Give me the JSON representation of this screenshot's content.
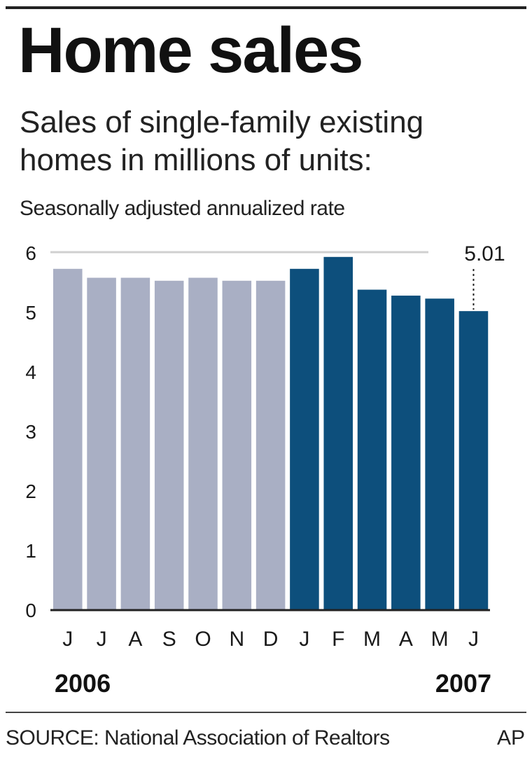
{
  "title": "Home sales",
  "subtitle": "Sales of single-family existing homes in millions of units:",
  "note": "Seasonally adjusted annualized rate",
  "source": "SOURCE: National Association of Realtors",
  "credit": "AP",
  "colors": {
    "y2006": "#a9afc4",
    "y2007": "#0d4f7c",
    "text": "#1a1a1a",
    "grid": "#d0d0d0"
  },
  "chart_data": {
    "type": "bar",
    "categories": [
      "J",
      "J",
      "A",
      "S",
      "O",
      "N",
      "D",
      "J",
      "F",
      "M",
      "A",
      "M",
      "J"
    ],
    "year_labels": [
      "2006",
      "2007"
    ],
    "series": [
      {
        "year": "2006",
        "values": [
          5.72,
          5.57,
          5.57,
          5.52,
          5.57,
          5.52,
          5.52,
          null,
          null,
          null,
          null,
          null,
          null
        ]
      },
      {
        "year": "2007",
        "values": [
          null,
          null,
          null,
          null,
          null,
          null,
          null,
          5.72,
          5.92,
          5.37,
          5.27,
          5.22,
          5.01
        ]
      }
    ],
    "ylim": [
      0,
      6
    ],
    "yticks": [
      0,
      1,
      2,
      3,
      4,
      5,
      6
    ],
    "annotation": {
      "text": "5.01",
      "category_index": 12
    },
    "xlabel": "",
    "ylabel": ""
  }
}
